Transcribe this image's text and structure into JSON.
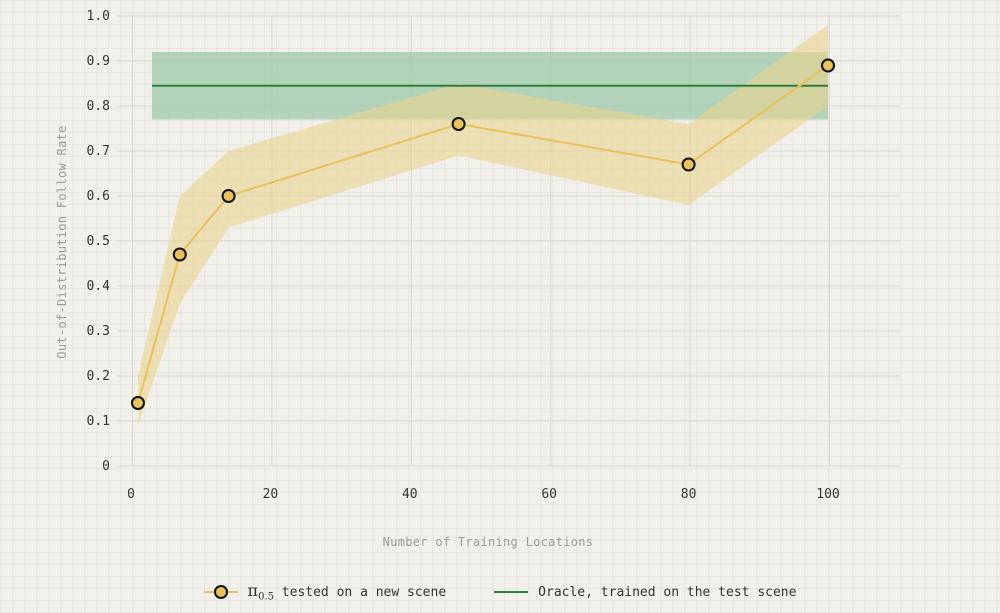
{
  "chart_data": {
    "type": "line",
    "xlabel": "Number of Training Locations",
    "ylabel": "Out-of-Distribution Follow Rate",
    "xlim": [
      0,
      108
    ],
    "ylim": [
      0,
      1.0
    ],
    "x_ticks": [
      0,
      20,
      40,
      60,
      80,
      100
    ],
    "y_ticks": [
      0,
      0.1,
      0.2,
      0.3,
      0.4,
      0.5,
      0.6,
      0.7,
      0.8,
      0.9,
      1.0
    ],
    "y_tick_labels": [
      "0",
      "0.1",
      "0.2",
      "0.3",
      "0.4",
      "0.5",
      "0.6",
      "0.7",
      "0.8",
      "0.9",
      "1.0"
    ],
    "grid": true,
    "legend_position": "bottom-center",
    "series": [
      {
        "name_symbol": "π",
        "name_subscript": "0.5",
        "name_suffix": "tested on a new scene",
        "color": "#e9c25f",
        "band_color": "#ead38e",
        "points": [
          {
            "x": 1,
            "y": 0.14,
            "lower": 0.09,
            "upper": 0.2
          },
          {
            "x": 7,
            "y": 0.47,
            "lower": 0.36,
            "upper": 0.6
          },
          {
            "x": 14,
            "y": 0.6,
            "lower": 0.53,
            "upper": 0.7
          },
          {
            "x": 47,
            "y": 0.76,
            "lower": 0.69,
            "upper": 0.85
          },
          {
            "x": 80,
            "y": 0.67,
            "lower": 0.58,
            "upper": 0.76
          },
          {
            "x": 100,
            "y": 0.89,
            "lower": 0.8,
            "upper": 0.98
          }
        ]
      },
      {
        "name": "Oracle, trained on the test scene",
        "color": "#2f7d3a",
        "band_color": "#9cc9aa",
        "x_range": [
          3,
          100
        ],
        "y": 0.845,
        "lower": 0.77,
        "upper": 0.92
      }
    ]
  }
}
